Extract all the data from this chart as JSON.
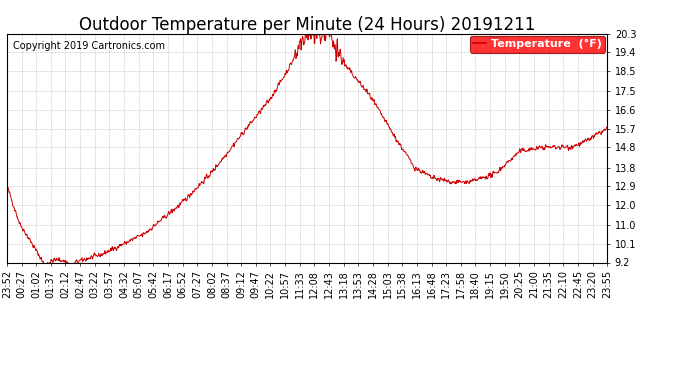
{
  "title": "Outdoor Temperature per Minute (24 Hours) 20191211",
  "copyright_text": "Copyright 2019 Cartronics.com",
  "legend_label": "Temperature  (°F)",
  "background_color": "#ffffff",
  "plot_bg_color": "#ffffff",
  "line_color": "#cc0000",
  "grid_color": "#999999",
  "ylim": [
    9.2,
    20.3
  ],
  "yticks": [
    9.2,
    10.1,
    11.0,
    12.0,
    12.9,
    13.8,
    14.8,
    15.7,
    16.6,
    17.5,
    18.5,
    19.4,
    20.3
  ],
  "xtick_labels": [
    "23:52",
    "00:27",
    "01:02",
    "01:37",
    "02:12",
    "02:47",
    "03:22",
    "03:57",
    "04:32",
    "05:07",
    "05:42",
    "06:17",
    "06:52",
    "07:27",
    "08:02",
    "08:37",
    "09:12",
    "09:47",
    "10:22",
    "10:57",
    "11:33",
    "12:08",
    "12:43",
    "13:18",
    "13:53",
    "14:28",
    "15:03",
    "15:38",
    "16:13",
    "16:48",
    "17:23",
    "17:58",
    "18:40",
    "19:15",
    "19:50",
    "20:25",
    "21:00",
    "21:35",
    "22:10",
    "22:45",
    "23:20",
    "23:55"
  ],
  "title_fontsize": 12,
  "tick_fontsize": 7,
  "legend_fontsize": 8,
  "copyright_fontsize": 7
}
